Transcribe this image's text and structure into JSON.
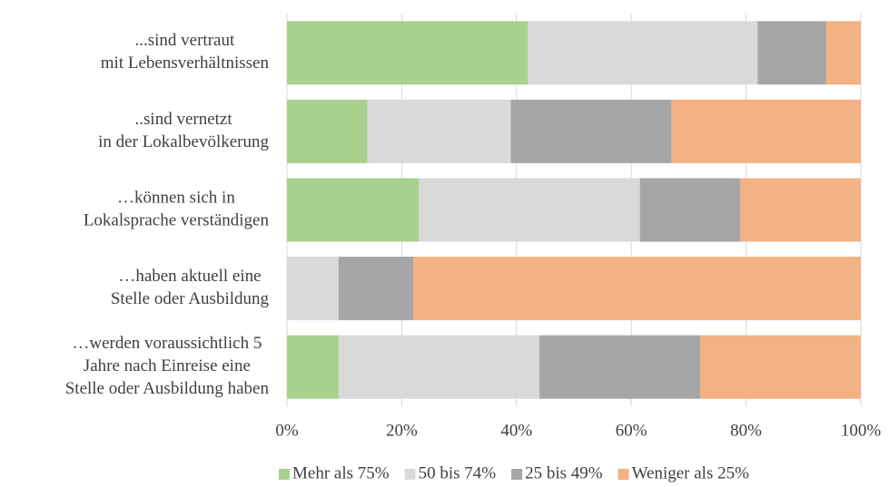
{
  "chart_data": {
    "type": "stacked_bar_horizontal",
    "categories": [
      [
        "...sind vertraut",
        "mit Lebensverhältnissen"
      ],
      [
        "..sind vernetzt",
        "in der Lokalbevölkerung"
      ],
      [
        "…können sich in",
        "Lokalsprache verständigen"
      ],
      [
        "…haben aktuell eine",
        "Stelle oder Ausbildung"
      ],
      [
        "…werden voraussichtlich 5",
        "Jahre nach Einreise eine",
        "Stelle oder Ausbildung haben"
      ]
    ],
    "series": [
      {
        "name": "Mehr als 75%",
        "color": "#a9d18e",
        "values": [
          42,
          14,
          23,
          0,
          9
        ]
      },
      {
        "name": "50 bis 74%",
        "color": "#d9d9d9",
        "values": [
          40,
          25,
          38.5,
          9,
          35
        ]
      },
      {
        "name": "25 bis 49%",
        "color": "#a6a6a6",
        "values": [
          12,
          28,
          17.5,
          13,
          28
        ]
      },
      {
        "name": "Weniger als 25%",
        "color": "#f4b183",
        "values": [
          6,
          33,
          21,
          78,
          28
        ]
      }
    ],
    "xlim": [
      0,
      100
    ],
    "xticks": [
      {
        "value": 0,
        "label": "0%"
      },
      {
        "value": 20,
        "label": "20%"
      },
      {
        "value": 40,
        "label": "40%"
      },
      {
        "value": 60,
        "label": "60%"
      },
      {
        "value": 80,
        "label": "80%"
      },
      {
        "value": 100,
        "label": "100%"
      }
    ],
    "grid": true,
    "legend": "bottom"
  }
}
